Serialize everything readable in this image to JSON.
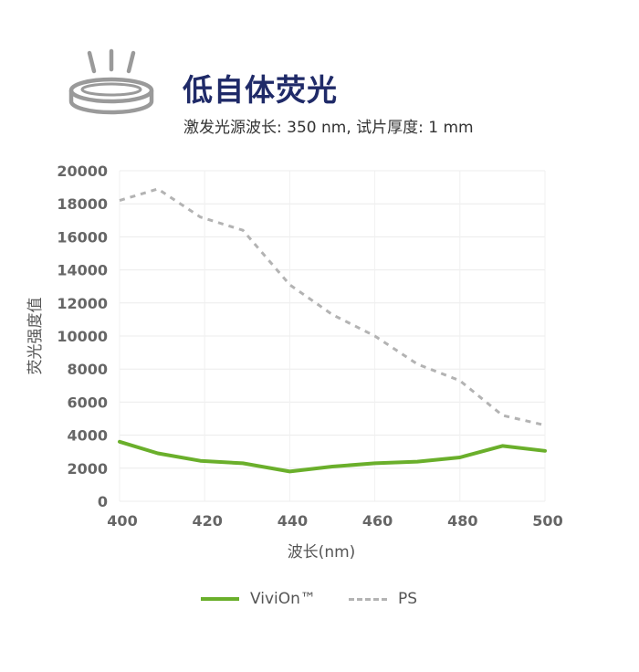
{
  "header": {
    "title": "低自体荧光",
    "subtitle": "激发光源波长: 350 nm, 试片厚度: 1 mm",
    "icon": "light-disc-icon"
  },
  "chart_data": {
    "type": "line",
    "xlabel": "波长(nm)",
    "ylabel": "荧光强度值",
    "xlim": [
      400,
      500
    ],
    "ylim": [
      0,
      20000
    ],
    "x_ticks": [
      400,
      420,
      440,
      460,
      480,
      500
    ],
    "y_ticks": [
      0,
      2000,
      4000,
      6000,
      8000,
      10000,
      12000,
      14000,
      16000,
      18000,
      20000
    ],
    "grid": true,
    "legend_position": "bottom",
    "series": [
      {
        "name": "ViviOn™",
        "color": "#6aaf2b",
        "style": "solid",
        "x": [
          400,
          409,
          419,
          429,
          440,
          450,
          460,
          470,
          480,
          490,
          500
        ],
        "y": [
          3600,
          2900,
          2450,
          2300,
          1800,
          2100,
          2300,
          2400,
          2650,
          3350,
          3050
        ]
      },
      {
        "name": "PS",
        "color": "#b3b3b3",
        "style": "dashed",
        "x": [
          400,
          409,
          419,
          429,
          440,
          450,
          460,
          470,
          480,
          490,
          500
        ],
        "y": [
          18200,
          18900,
          17200,
          16400,
          13100,
          11300,
          10000,
          8300,
          7300,
          5200,
          4600
        ]
      }
    ]
  }
}
